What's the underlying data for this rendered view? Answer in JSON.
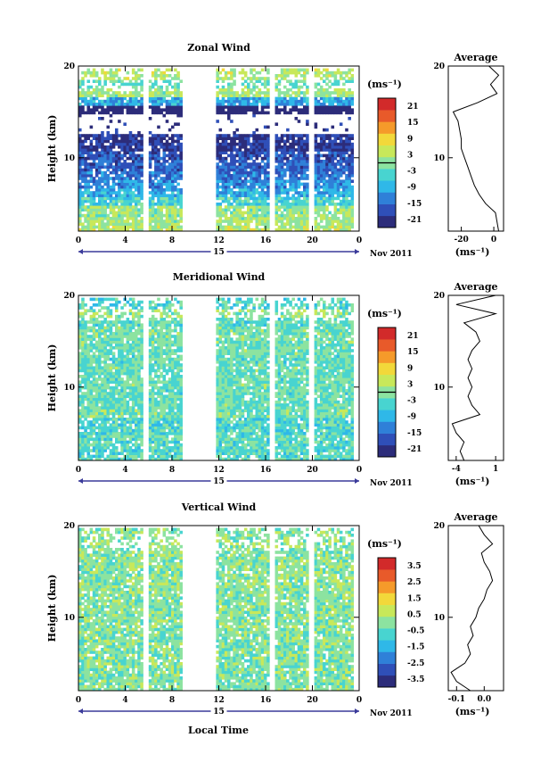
{
  "figure": {
    "date_label": "Nov 2011",
    "day_label": "15",
    "xlabel_bottom": "Local Time"
  },
  "chart_data": [
    {
      "type": "heatmap",
      "title": "Zonal Wind",
      "ylabel": "Height (km)",
      "x_ticks": [
        "0",
        "4",
        "8",
        "12",
        "16",
        "20",
        "0"
      ],
      "x_range": [
        0,
        24
      ],
      "y_ticks": [
        "10",
        "20"
      ],
      "ylim": [
        2,
        20
      ],
      "colorbar": {
        "unit": "(ms⁻¹)",
        "ticks": [
          "21",
          "15",
          "9",
          "3",
          "-3",
          "-9",
          "-15",
          "-21"
        ],
        "range": [
          -24,
          24
        ]
      },
      "data_gaps_hours": [
        [
          5.5,
          6.0
        ],
        [
          8.8,
          11.7
        ],
        [
          16.2,
          16.6
        ],
        [
          19.6,
          20.0
        ]
      ],
      "contour_level": 0,
      "profile": {
        "title": "Average",
        "xlabel": "(ms⁻¹)",
        "x_ticks": [
          "-20",
          "0"
        ],
        "xlim": [
          -28,
          6
        ],
        "heights_km": [
          2,
          3,
          4,
          5,
          6,
          7,
          8,
          9,
          10,
          11,
          12,
          13,
          14,
          15,
          16,
          17,
          18,
          19,
          20
        ],
        "values": [
          3,
          2,
          1,
          -5,
          -9,
          -12,
          -14,
          -16,
          -18,
          -20,
          -20,
          -21,
          -22,
          -25,
          -10,
          2,
          -2,
          3,
          -3
        ]
      }
    },
    {
      "type": "heatmap",
      "title": "Meridional Wind",
      "ylabel": "Height (km)",
      "x_ticks": [
        "0",
        "4",
        "8",
        "12",
        "16",
        "20",
        "0"
      ],
      "x_range": [
        0,
        24
      ],
      "y_ticks": [
        "10",
        "20"
      ],
      "ylim": [
        2,
        20
      ],
      "colorbar": {
        "unit": "(ms⁻¹)",
        "ticks": [
          "21",
          "15",
          "9",
          "3",
          "-3",
          "-9",
          "-15",
          "-21"
        ],
        "range": [
          -24,
          24
        ]
      },
      "data_gaps_hours": [
        [
          5.5,
          6.0
        ],
        [
          8.8,
          11.7
        ],
        [
          16.2,
          16.6
        ],
        [
          19.6,
          20.0
        ]
      ],
      "contour_level": 0,
      "profile": {
        "title": "Average",
        "xlabel": "(ms⁻¹)",
        "x_ticks": [
          "-4",
          "1"
        ],
        "xlim": [
          -5,
          2
        ],
        "heights_km": [
          2,
          3,
          4,
          5,
          6,
          7,
          8,
          9,
          10,
          11,
          12,
          13,
          14,
          15,
          16,
          17,
          18,
          19,
          20
        ],
        "values": [
          -3,
          -3.5,
          -3,
          -4,
          -4.5,
          -1,
          -2,
          -2.5,
          -2,
          -2.5,
          -2,
          -2.5,
          -2,
          -1,
          -1.5,
          -3,
          1,
          -4,
          1
        ]
      }
    },
    {
      "type": "heatmap",
      "title": "Vertical Wind",
      "ylabel": "Height (km)",
      "x_ticks": [
        "0",
        "4",
        "8",
        "12",
        "16",
        "20",
        "0"
      ],
      "x_range": [
        0,
        24
      ],
      "y_ticks": [
        "10",
        "20"
      ],
      "ylim": [
        2,
        20
      ],
      "colorbar": {
        "unit": "(ms⁻¹)",
        "ticks": [
          "3.5",
          "2.5",
          "1.5",
          "0.5",
          "-0.5",
          "-1.5",
          "-2.5",
          "-3.5"
        ],
        "range": [
          -4,
          4
        ]
      },
      "data_gaps_hours": [
        [
          5.5,
          6.0
        ],
        [
          8.8,
          11.7
        ],
        [
          16.2,
          16.6
        ],
        [
          19.6,
          20.0
        ]
      ],
      "profile": {
        "title": "Average",
        "xlabel": "(ms⁻¹)",
        "x_ticks": [
          "-0.1",
          "0.0"
        ],
        "xlim": [
          -0.13,
          0.07
        ],
        "heights_km": [
          2,
          3,
          4,
          5,
          6,
          7,
          8,
          9,
          10,
          11,
          12,
          13,
          14,
          15,
          16,
          17,
          18,
          19,
          20
        ],
        "values": [
          -0.05,
          -0.1,
          -0.12,
          -0.07,
          -0.05,
          -0.06,
          -0.04,
          -0.05,
          -0.03,
          -0.02,
          0.0,
          0.01,
          0.03,
          0.02,
          0.0,
          -0.01,
          0.03,
          0.0,
          -0.02
        ]
      }
    }
  ],
  "colormap": [
    "#2c2c7a",
    "#2f4fb8",
    "#2f80d8",
    "#2fb8e8",
    "#48d4d0",
    "#8ce3a0",
    "#c8e85a",
    "#f2d83a",
    "#f59a2a",
    "#e85a2a",
    "#d22a2a"
  ]
}
